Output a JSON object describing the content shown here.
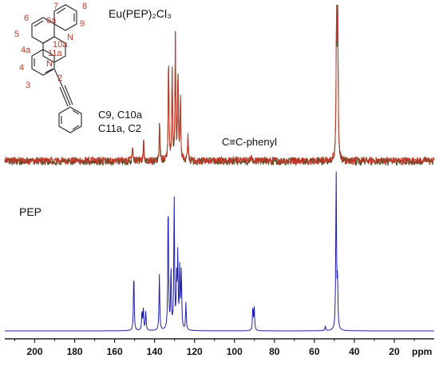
{
  "chart_data": {
    "type": "line",
    "xlabel": "ppm",
    "x_reversed": true,
    "xlim": [
      215,
      0
    ],
    "x_ticks": [
      200,
      180,
      160,
      140,
      120,
      100,
      80,
      60,
      40,
      20
    ],
    "colors": {
      "upper": "#c0392b",
      "upper_dark": "#4a4a1a",
      "lower": "#1f1fb3"
    },
    "series": [
      {
        "name": "Eu(PEP)2Cl3",
        "noise_amplitude": 0.03,
        "peaks": [
          {
            "x": 151.0,
            "h": 0.1
          },
          {
            "x": 145.5,
            "h": 0.17
          },
          {
            "x": 137.5,
            "h": 0.32
          },
          {
            "x": 133.0,
            "h": 0.82
          },
          {
            "x": 131.2,
            "h": 0.72
          },
          {
            "x": 129.6,
            "h": 0.97
          },
          {
            "x": 128.3,
            "h": 0.7
          },
          {
            "x": 127.1,
            "h": 0.52
          },
          {
            "x": 123.3,
            "h": 0.19
          },
          {
            "x": 91.5,
            "h": 0.05
          },
          {
            "x": 48.9,
            "h": 1.25
          },
          {
            "x": 48.3,
            "h": 1.25
          }
        ]
      },
      {
        "name": "PEP",
        "noise_amplitude": 0.0,
        "peaks": [
          {
            "x": 150.4,
            "h": 0.37
          },
          {
            "x": 146.3,
            "h": 0.12
          },
          {
            "x": 145.6,
            "h": 0.13
          },
          {
            "x": 144.4,
            "h": 0.12
          },
          {
            "x": 137.6,
            "h": 0.35
          },
          {
            "x": 133.2,
            "h": 0.83
          },
          {
            "x": 131.8,
            "h": 0.38
          },
          {
            "x": 130.2,
            "h": 0.82
          },
          {
            "x": 129.0,
            "h": 0.3
          },
          {
            "x": 128.4,
            "h": 0.45
          },
          {
            "x": 127.4,
            "h": 0.38
          },
          {
            "x": 126.6,
            "h": 0.37
          },
          {
            "x": 124.3,
            "h": 0.17
          },
          {
            "x": 90.8,
            "h": 0.15
          },
          {
            "x": 90.1,
            "h": 0.14
          },
          {
            "x": 54.5,
            "h": 0.03
          },
          {
            "x": 49.1,
            "h": 1.0
          },
          {
            "x": 48.4,
            "h": 0.3
          }
        ]
      }
    ],
    "annotations": {
      "upper_title": "Eu(PEP)₂Cl₃",
      "lower_title": "PEP",
      "assign_line1": "C9, C10a",
      "assign_line2": "C11a, C2",
      "alkyne_label": "C≡C-phenyl"
    },
    "structure_labels": [
      "7",
      "8",
      "6a",
      "6",
      "9",
      "5",
      "10a",
      "N",
      "4a",
      "11a",
      "4",
      "N",
      "3",
      "2"
    ]
  }
}
